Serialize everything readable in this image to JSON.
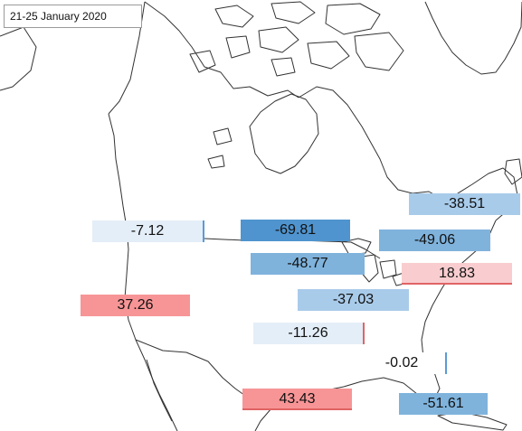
{
  "date_label": "21-25  January 2020",
  "colors": {
    "deep_blue": "#4f94cf",
    "mid_blue": "#7fb3dc",
    "light_blue": "#a9cbea",
    "pale_blue": "#e4eef8",
    "pink": "#f9cdcf",
    "red": "#f79596",
    "coast": "#333333"
  },
  "values": {
    "wa": "-7.12",
    "ca": "37.26",
    "mid_north": "-69.81",
    "mid_upper": "-48.77",
    "mid_lower": "-37.03",
    "south_central": "-11.26",
    "gulf": "43.43",
    "northeast_top": "-38.51",
    "northeast": "-49.06",
    "mid_atlantic": "18.83",
    "southeast": "-0.02",
    "florida": "-51.61"
  }
}
